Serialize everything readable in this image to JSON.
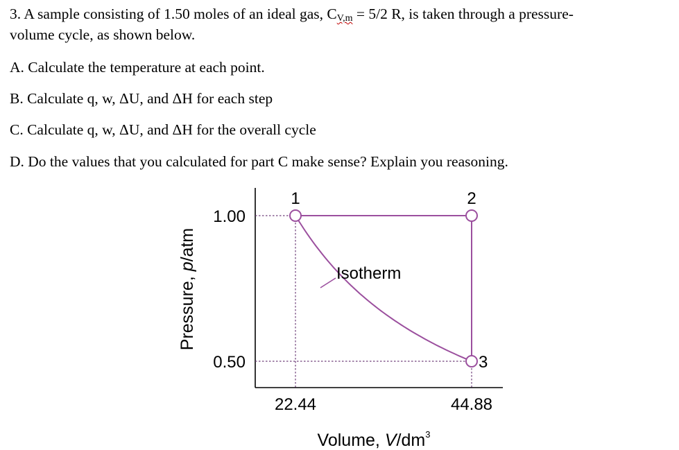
{
  "problem": {
    "line1_pre": "3. A sample consisting of 1.50 moles of an ideal gas, C",
    "line1_subscript": "V,m",
    "line1_post": " = 5/2 R, is taken through a pressure-",
    "line2": "volume cycle, as shown below.",
    "part_a": "A. Calculate the temperature at each point.",
    "part_b": "B. Calculate q, w, ΔU, and ΔH for each step",
    "part_c": "C. Calculate q, w, ΔU, and ΔH for the overall cycle",
    "part_d": "D. Do the values that you calculated for part C make sense? Explain you reasoning."
  },
  "chart_data": {
    "type": "line",
    "xlabel_main": "Volume, ",
    "xlabel_var": "V",
    "xlabel_unit": "/dm",
    "xlabel_exp": "3",
    "ylabel_main": "Pressure, ",
    "ylabel_var": "p",
    "ylabel_unit": "/atm",
    "x_ticks": [
      "22.44",
      "44.88"
    ],
    "y_ticks": [
      "1.00",
      "0.50"
    ],
    "points": [
      {
        "label": "1",
        "x": 22.44,
        "y": 1.0
      },
      {
        "label": "2",
        "x": 44.88,
        "y": 1.0
      },
      {
        "label": "3",
        "x": 44.88,
        "y": 0.5
      }
    ],
    "annotation": "Isotherm",
    "colors": {
      "path": "#9b4f9e",
      "guide": "#6f3f7a",
      "axis": "#000000"
    }
  }
}
